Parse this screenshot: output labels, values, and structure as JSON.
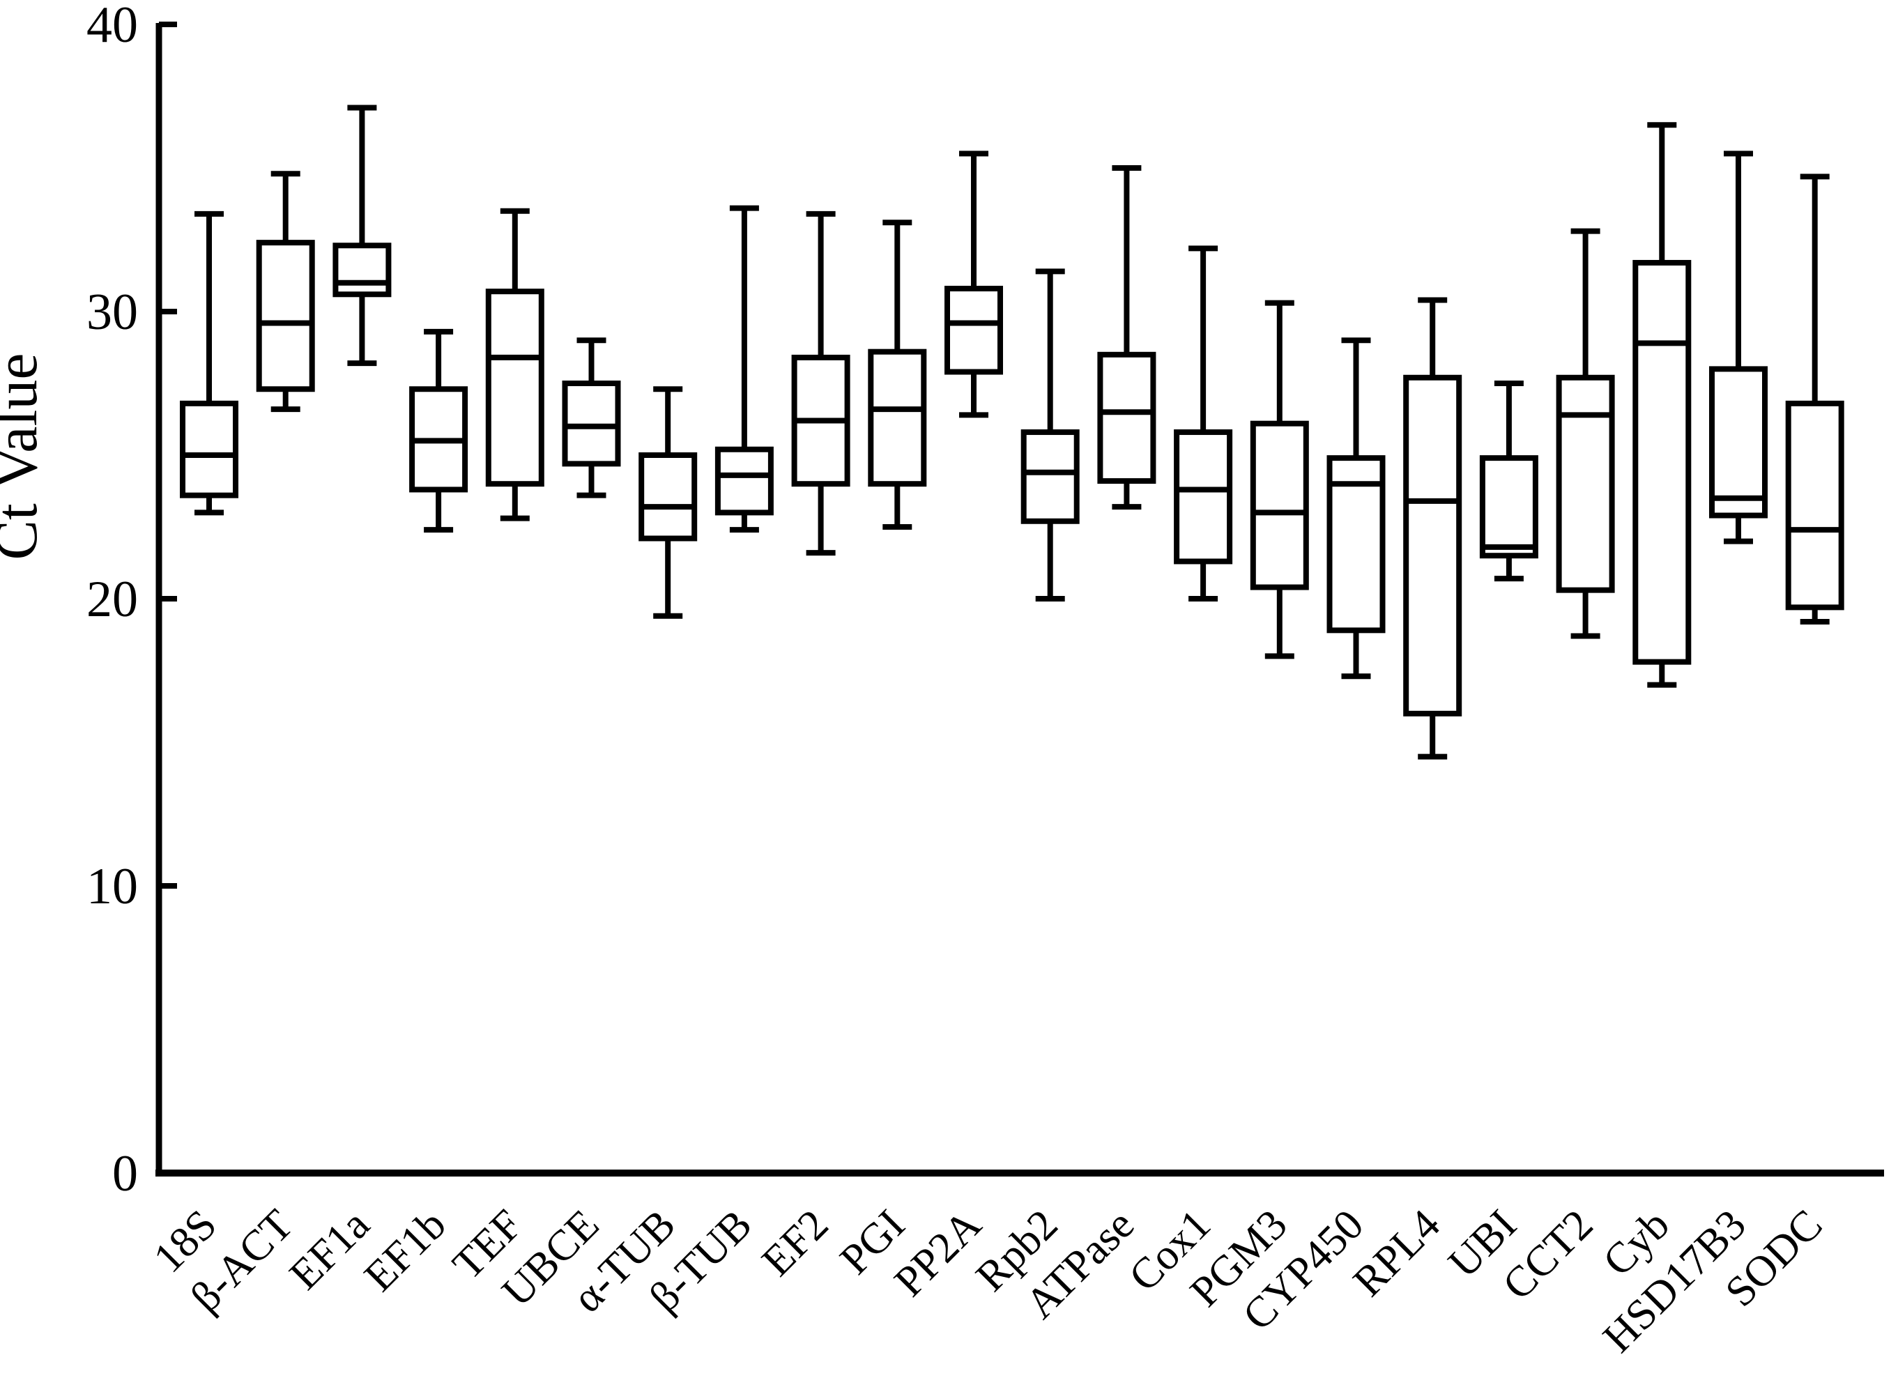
{
  "figure": {
    "background_color": "#ffffff",
    "ink_color": "#000000"
  },
  "chart_data": {
    "type": "boxplot",
    "title": "",
    "xlabel": "",
    "ylabel": "Ct Value",
    "ylim": [
      0,
      40
    ],
    "yticks": [
      0,
      10,
      20,
      30,
      40
    ],
    "grid": false,
    "legend": false,
    "x_tick_rotation_deg": 45,
    "categories": [
      "18S",
      "β-ACT",
      "EF1a",
      "EF1b",
      "TEF",
      "UBCE",
      "α-TUB",
      "β-TUB",
      "EF2",
      "PGI",
      "PP2A",
      "Rpb2",
      "ATPase",
      "Cox1",
      "PGM3",
      "CYP450",
      "RPL4",
      "UBI",
      "CCT2",
      "Cyb",
      "HSD17B3",
      "SODC"
    ],
    "series": [
      {
        "name": "18S",
        "min": 23.0,
        "q1": 23.6,
        "median": 25.0,
        "q3": 26.8,
        "max": 33.4
      },
      {
        "name": "β-ACT",
        "min": 26.6,
        "q1": 27.3,
        "median": 29.6,
        "q3": 32.4,
        "max": 34.8
      },
      {
        "name": "EF1a",
        "min": 28.2,
        "q1": 30.6,
        "median": 31.0,
        "q3": 32.3,
        "max": 37.1
      },
      {
        "name": "EF1b",
        "min": 22.4,
        "q1": 23.8,
        "median": 25.5,
        "q3": 27.3,
        "max": 29.3
      },
      {
        "name": "TEF",
        "min": 22.8,
        "q1": 24.0,
        "median": 28.4,
        "q3": 30.7,
        "max": 33.5
      },
      {
        "name": "UBCE",
        "min": 23.6,
        "q1": 24.7,
        "median": 26.0,
        "q3": 27.5,
        "max": 29.0
      },
      {
        "name": "α-TUB",
        "min": 19.4,
        "q1": 22.1,
        "median": 23.2,
        "q3": 25.0,
        "max": 27.3
      },
      {
        "name": "β-TUB",
        "min": 22.4,
        "q1": 23.0,
        "median": 24.3,
        "q3": 25.2,
        "max": 33.6
      },
      {
        "name": "EF2",
        "min": 21.6,
        "q1": 24.0,
        "median": 26.2,
        "q3": 28.4,
        "max": 33.4
      },
      {
        "name": "PGI",
        "min": 22.5,
        "q1": 24.0,
        "median": 26.6,
        "q3": 28.6,
        "max": 33.1
      },
      {
        "name": "PP2A",
        "min": 26.4,
        "q1": 27.9,
        "median": 29.6,
        "q3": 30.8,
        "max": 35.5
      },
      {
        "name": "Rpb2",
        "min": 20.0,
        "q1": 22.7,
        "median": 24.4,
        "q3": 25.8,
        "max": 31.4
      },
      {
        "name": "ATPase",
        "min": 23.2,
        "q1": 24.1,
        "median": 26.5,
        "q3": 28.5,
        "max": 35.0
      },
      {
        "name": "Cox1",
        "min": 20.0,
        "q1": 21.3,
        "median": 23.8,
        "q3": 25.8,
        "max": 32.2
      },
      {
        "name": "PGM3",
        "min": 18.0,
        "q1": 20.4,
        "median": 23.0,
        "q3": 26.1,
        "max": 30.3
      },
      {
        "name": "CYP450",
        "min": 17.3,
        "q1": 18.9,
        "median": 24.0,
        "q3": 24.9,
        "max": 29.0
      },
      {
        "name": "RPL4",
        "min": 14.5,
        "q1": 16.0,
        "median": 23.4,
        "q3": 27.7,
        "max": 30.4
      },
      {
        "name": "UBI",
        "min": 20.7,
        "q1": 21.5,
        "median": 21.8,
        "q3": 24.9,
        "max": 27.5
      },
      {
        "name": "CCT2",
        "min": 18.7,
        "q1": 20.3,
        "median": 26.4,
        "q3": 27.7,
        "max": 32.8
      },
      {
        "name": "Cyb",
        "min": 17.0,
        "q1": 17.8,
        "median": 28.9,
        "q3": 31.7,
        "max": 36.5
      },
      {
        "name": "HSD17B3",
        "min": 22.0,
        "q1": 22.9,
        "median": 23.5,
        "q3": 28.0,
        "max": 35.5
      },
      {
        "name": "SODC",
        "min": 19.2,
        "q1": 19.7,
        "median": 22.4,
        "q3": 26.8,
        "max": 34.7
      }
    ]
  }
}
